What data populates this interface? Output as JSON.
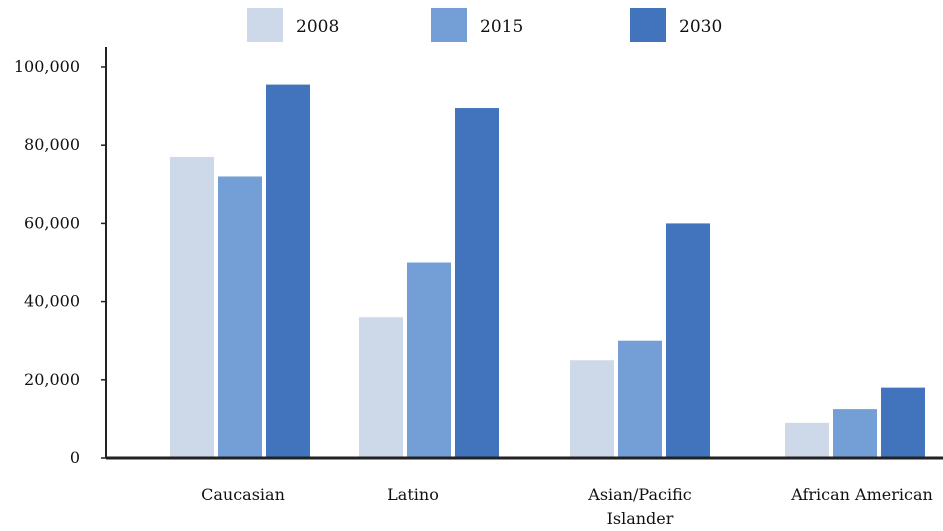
{
  "chart_data": {
    "type": "bar",
    "categories": [
      [
        "Caucasian"
      ],
      [
        "Latino"
      ],
      [
        "Asian/Pacific",
        "Islander"
      ],
      [
        "African American"
      ]
    ],
    "series": [
      {
        "name": "2008",
        "color": "#cdd8e8",
        "values": [
          77000,
          36000,
          25000,
          9000
        ]
      },
      {
        "name": "2015",
        "color": "#739fd6",
        "values": [
          72000,
          50000,
          30000,
          12500
        ]
      },
      {
        "name": "2030",
        "color": "#4174bd",
        "values": [
          95500,
          89500,
          60000,
          18000
        ]
      }
    ],
    "y_ticks": [
      "0",
      "20,000",
      "40,000",
      "60,000",
      "80,000",
      "100,000"
    ],
    "ylim": [
      0,
      100000
    ],
    "legend_position": "top",
    "grid": false
  }
}
